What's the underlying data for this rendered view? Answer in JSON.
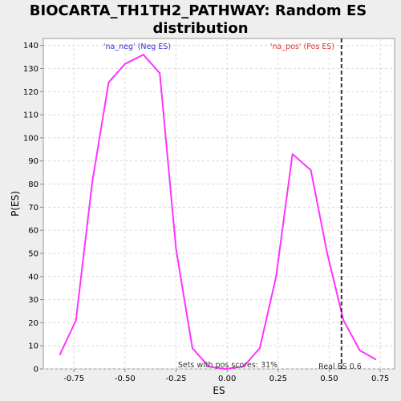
{
  "chart_data": {
    "type": "line",
    "title_lines": [
      "BIOCARTA_TH1TH2_PATHWAY: Random ES",
      "distribution"
    ],
    "xlabel": "ES",
    "ylabel": "P(ES)",
    "xlim": [
      -0.9,
      0.82
    ],
    "ylim": [
      0,
      143
    ],
    "x_ticks": [
      -0.75,
      -0.5,
      -0.25,
      0.0,
      0.25,
      0.5,
      0.75
    ],
    "x_tick_labels": [
      "-0.75",
      "-0.50",
      "-0.25",
      "0.00",
      "0.25",
      "0.50",
      "0.75"
    ],
    "y_ticks": [
      0,
      10,
      20,
      30,
      40,
      50,
      60,
      70,
      80,
      90,
      100,
      110,
      120,
      130,
      140
    ],
    "y_tick_labels": [
      "0",
      "10",
      "20",
      "30",
      "40",
      "50",
      "60",
      "70",
      "80",
      "90",
      "100",
      "110",
      "120",
      "130",
      "140"
    ],
    "grid": true,
    "series": [
      {
        "color": "#ff33ff",
        "x": [
          -0.82,
          -0.74,
          -0.66,
          -0.58,
          -0.5,
          -0.41,
          -0.33,
          -0.25,
          -0.17,
          -0.09,
          -0.01,
          0.08,
          0.16,
          0.24,
          0.32,
          0.41,
          0.49,
          0.57,
          0.65,
          0.73
        ],
        "y": [
          6,
          21,
          81,
          124,
          132,
          136,
          128,
          52,
          9,
          1,
          0,
          1,
          9,
          40,
          93,
          86,
          50,
          21,
          8,
          4
        ]
      }
    ],
    "annotations": {
      "neg_label": "'na_neg' (Neg ES)",
      "neg_color": "#3333cc",
      "pos_label": "'na_pos' (Pos ES)",
      "pos_color": "#dd3333",
      "pos_scores": "Sets with pos scores: 31%",
      "real_es_label": "Real ES 0.6",
      "real_es": 0.56
    }
  }
}
